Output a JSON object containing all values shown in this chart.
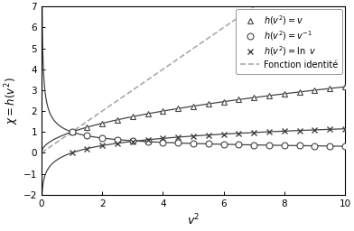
{
  "xlabel": "$v^2$",
  "ylabel": "$\\chi = h(v^2)$",
  "xlim": [
    0,
    10
  ],
  "ylim": [
    -2,
    7
  ],
  "xticks": [
    0,
    2,
    4,
    6,
    8,
    10
  ],
  "yticks": [
    -2,
    -1,
    0,
    1,
    2,
    3,
    4,
    5,
    6,
    7
  ],
  "line_color": "#444444",
  "identity_color": "#aaaaaa",
  "legend_labels": [
    "$h(v^2) = v$",
    "$h(v^2) = v^{-1}$",
    "$h(v^2) = \\ln\\ v$",
    "Fonction identité"
  ],
  "figsize": [
    3.92,
    2.56
  ],
  "dpi": 100
}
